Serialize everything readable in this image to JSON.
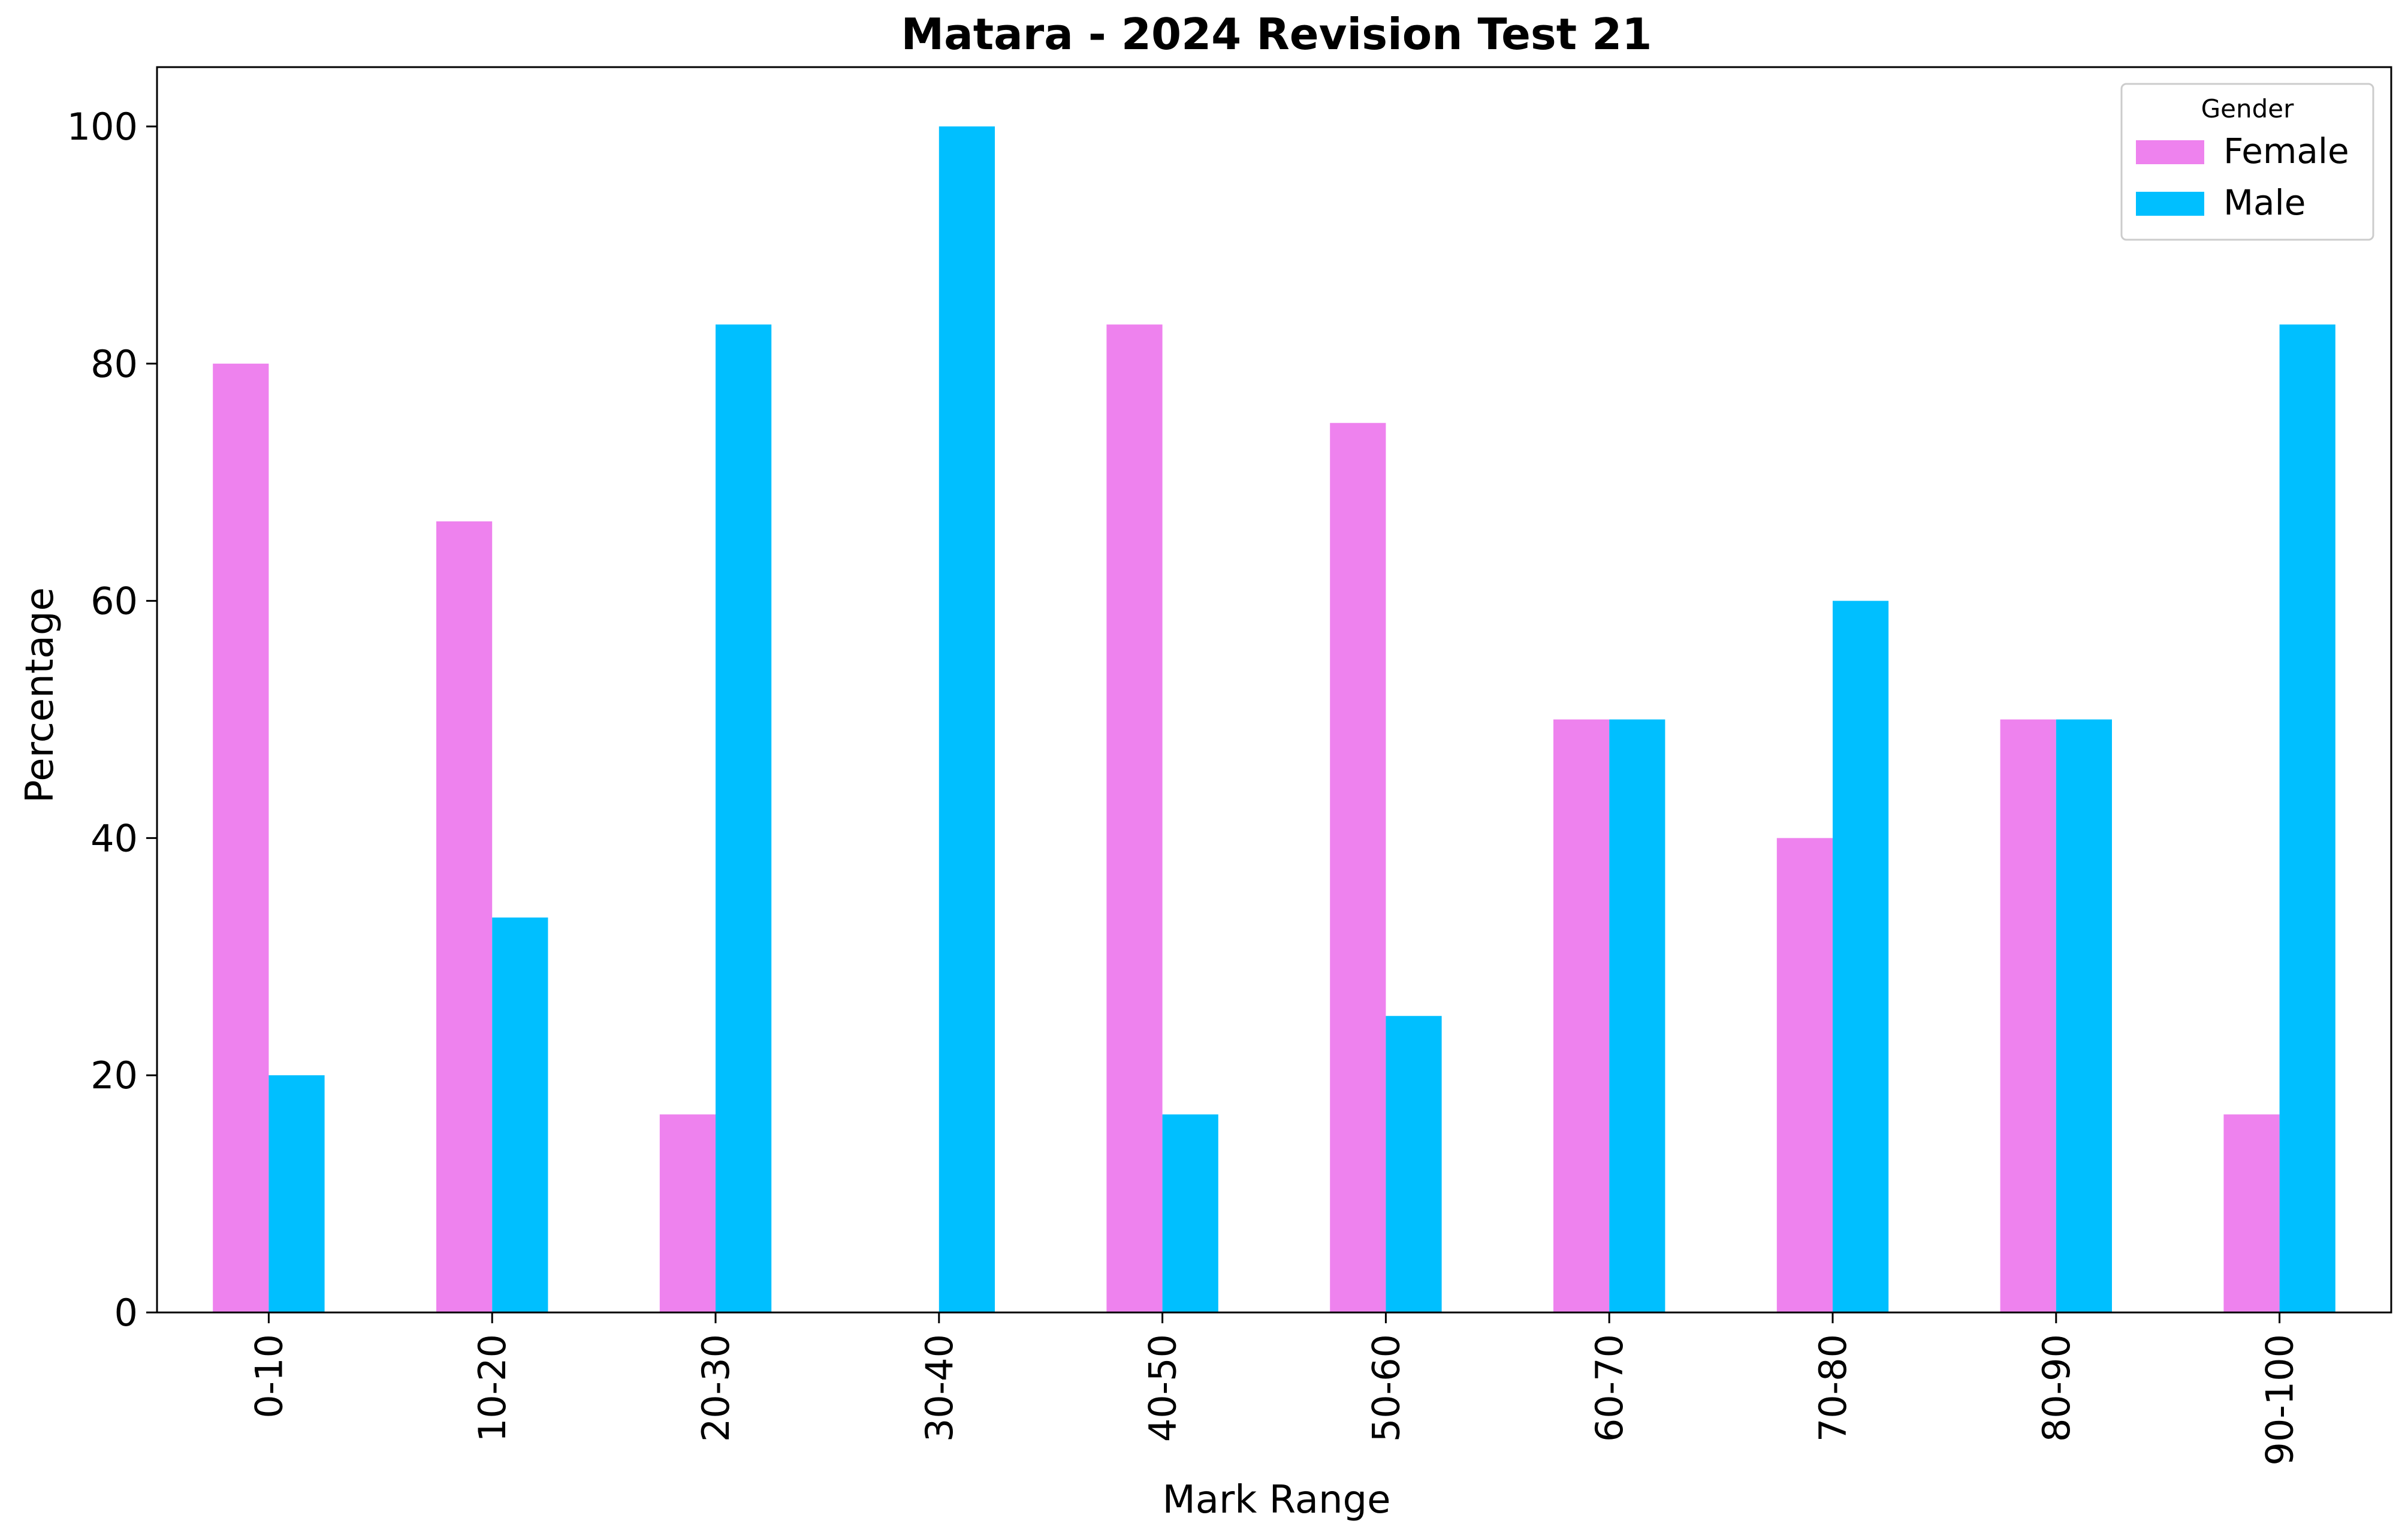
{
  "chart_data": {
    "type": "bar",
    "title": "Matara - 2024 Revision Test 21",
    "xlabel": "Mark Range",
    "ylabel": "Percentage",
    "categories": [
      "0-10",
      "10-20",
      "20-30",
      "30-40",
      "40-50",
      "50-60",
      "60-70",
      "70-80",
      "80-90",
      "90-100"
    ],
    "series": [
      {
        "name": "Female",
        "color": "#ee82ee",
        "values": [
          80,
          66.7,
          16.7,
          0,
          83.3,
          75,
          50,
          40,
          50,
          16.7
        ]
      },
      {
        "name": "Male",
        "color": "#00bfff",
        "values": [
          20,
          33.3,
          83.3,
          100,
          16.7,
          25,
          50,
          60,
          50,
          83.3
        ]
      }
    ],
    "ylim": [
      0,
      105
    ],
    "yticks": [
      0,
      20,
      40,
      60,
      80,
      100
    ],
    "grid": false,
    "legend": {
      "title": "Gender",
      "position": "top-right"
    }
  }
}
